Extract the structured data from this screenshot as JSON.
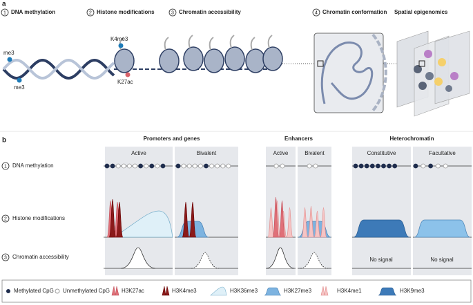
{
  "panel_a": {
    "label": "a",
    "steps": [
      {
        "number": "1",
        "label": "DNA methylation"
      },
      {
        "number": "2",
        "label": "Histone modifications"
      },
      {
        "number": "3",
        "label": "Chromatin accessibility"
      },
      {
        "number": "4",
        "label": "Chromatin conformation"
      }
    ],
    "spatial": "Spatial epigenomics",
    "marks": [
      "me3",
      "me3",
      "K4me3",
      "K27ac"
    ]
  },
  "panel_b": {
    "label": "b",
    "groups": [
      {
        "title": "Promoters and genes",
        "columns": [
          "Active",
          "Bivalent"
        ]
      },
      {
        "title": "Enhancers",
        "columns": [
          "Active",
          "Bivalent"
        ]
      },
      {
        "title": "Heterochromatin",
        "columns": [
          "Constitutive",
          "Facultative"
        ]
      }
    ],
    "rows": [
      {
        "number": "1",
        "label": "DNA methylation"
      },
      {
        "number": "2",
        "label": "Histone modifications"
      },
      {
        "number": "3",
        "label": "Chromatin accessibility"
      }
    ],
    "no_signal": [
      "No signal",
      "No signal"
    ]
  },
  "legend": [
    "Methylated CpG",
    "Unmethylated CpG",
    "H3K27ac",
    "H3K4me3",
    "H3K36me3",
    "H3K27me3",
    "H3K4me1",
    "H3K9me3"
  ]
}
